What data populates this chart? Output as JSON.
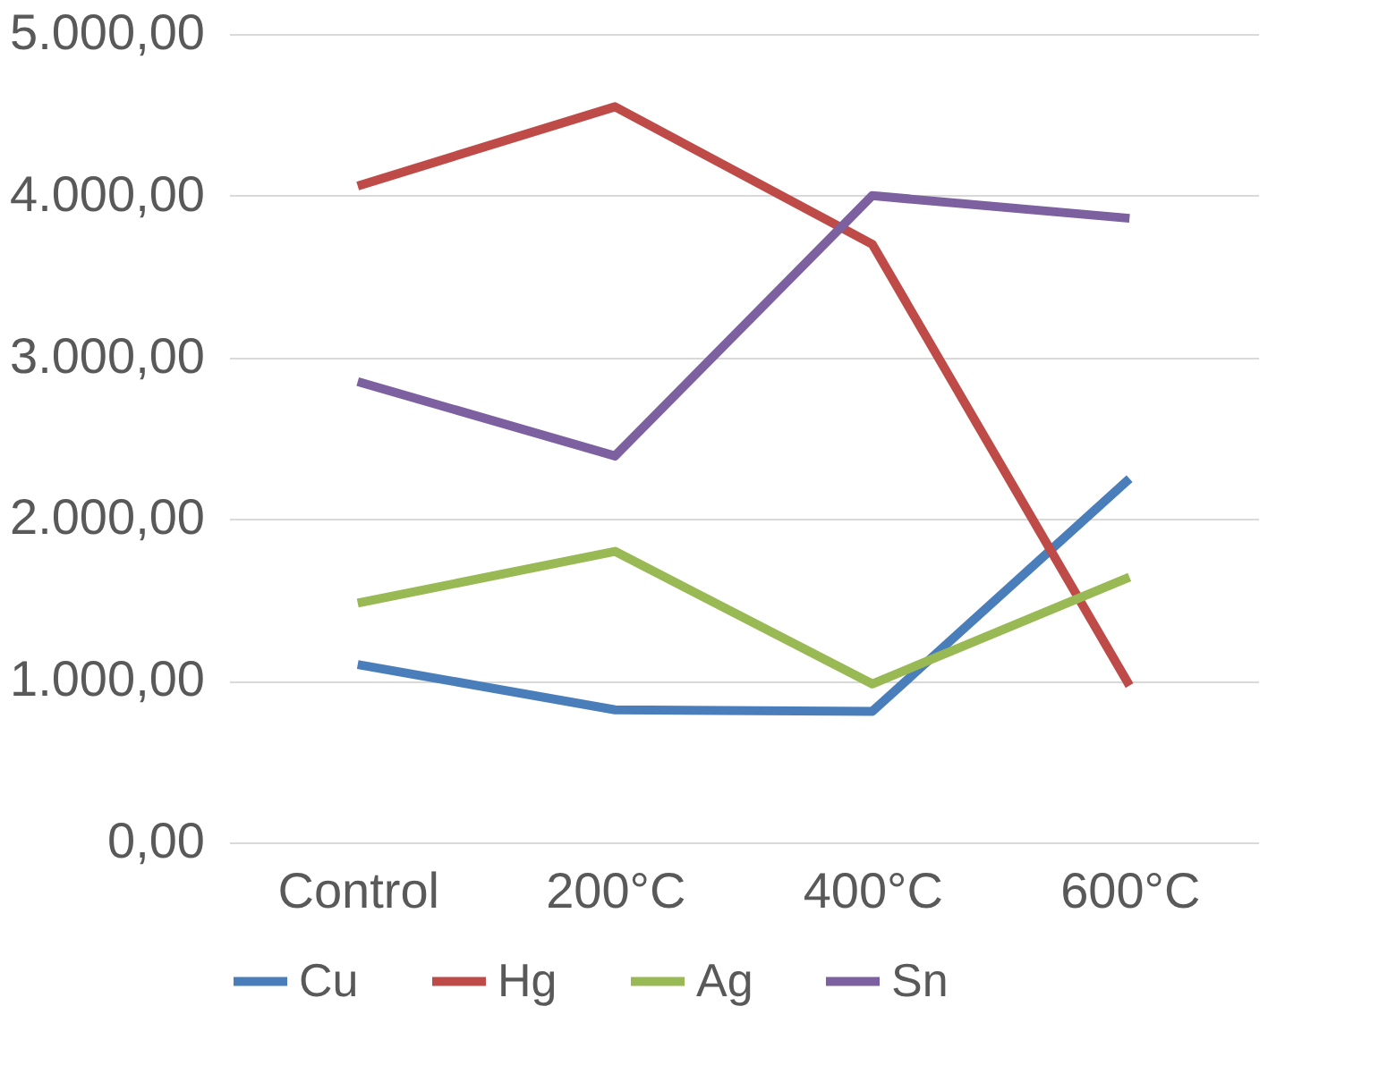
{
  "chart_data": {
    "type": "line",
    "categories": [
      "Control",
      "200°C",
      "400°C",
      "600°C"
    ],
    "series": [
      {
        "name": "Cu",
        "color": "#4a7ebb",
        "values": [
          1100,
          820,
          810,
          2250
        ]
      },
      {
        "name": "Hg",
        "color": "#be4b48",
        "values": [
          4060,
          4550,
          3700,
          970
        ]
      },
      {
        "name": "Ag",
        "color": "#98b954",
        "values": [
          1480,
          1800,
          980,
          1640
        ]
      },
      {
        "name": "Sn",
        "color": "#7d60a0",
        "values": [
          2850,
          2390,
          4000,
          3860
        ]
      }
    ],
    "ylim": [
      0,
      5000
    ],
    "yticks": [
      {
        "value": 0,
        "label": "0,00"
      },
      {
        "value": 1000,
        "label": "1.000,00"
      },
      {
        "value": 2000,
        "label": "2.000,00"
      },
      {
        "value": 3000,
        "label": "3.000,00"
      },
      {
        "value": 4000,
        "label": "4.000,00"
      },
      {
        "value": 5000,
        "label": "5.000,00"
      }
    ],
    "grid": "y",
    "legend": "bottom",
    "marker": "none",
    "line_style": "solid"
  }
}
